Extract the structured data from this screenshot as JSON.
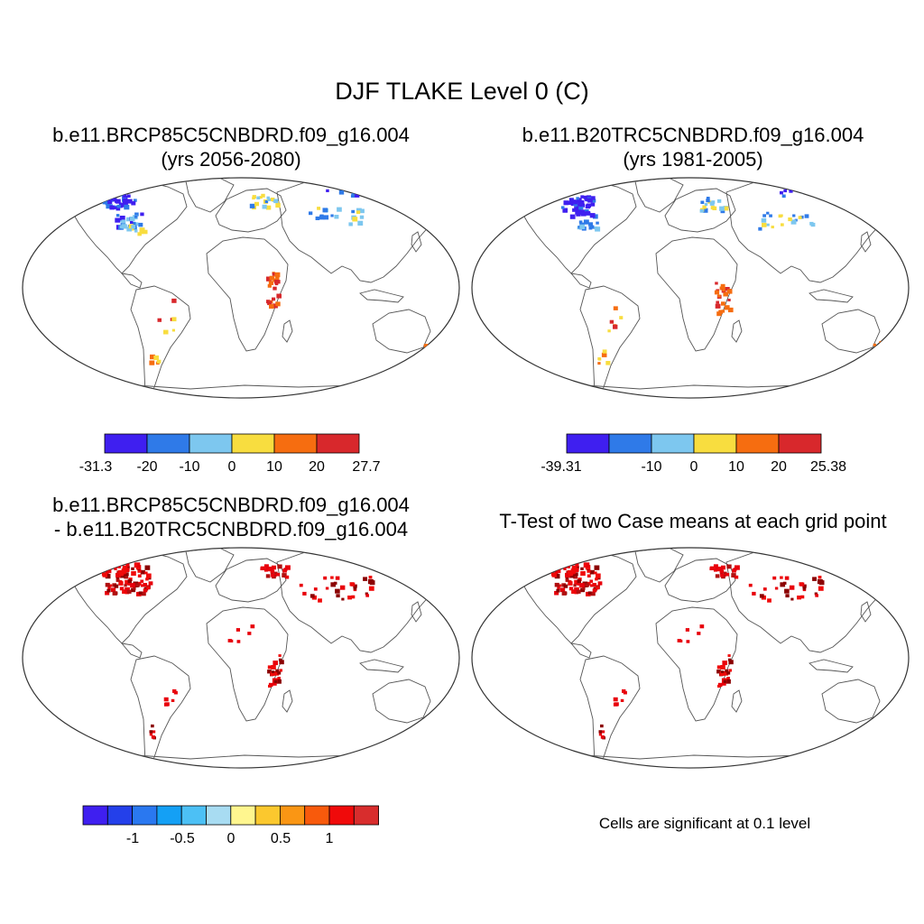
{
  "figure": {
    "title": "DJF TLAKE Level 0 (C)",
    "note": "Cells are significant at 0.1 level"
  },
  "colors": {
    "land_outline": "#555555",
    "frame": "#333333",
    "sig_dark": "#8b0000",
    "sig": "#e8000b"
  },
  "chart_data": [
    {
      "type": "heatmap",
      "id": "case1",
      "title_line1": "b.e11.BRCP85C5CNBDRD.f09_g16.004",
      "title_line2": "(yrs 2056-2080)",
      "projection": "Robinson world map",
      "colorbar": {
        "colors": [
          "#3f1ff0",
          "#2f7ae8",
          "#7dc7ef",
          "#f8dd3f",
          "#f66d10",
          "#d8282c"
        ],
        "tick_labels": [
          "-31.3",
          "-20",
          "-10",
          "0",
          "10",
          "20",
          "27.7"
        ],
        "min": -31.3,
        "max": 27.7
      }
    },
    {
      "type": "heatmap",
      "id": "case2",
      "title_line1": "b.e11.B20TRC5CNBDRD.f09_g16.004",
      "title_line2": "(yrs 1981-2005)",
      "projection": "Robinson world map",
      "colorbar": {
        "colors": [
          "#3f1ff0",
          "#2f7ae8",
          "#7dc7ef",
          "#f8dd3f",
          "#f66d10",
          "#d8282c"
        ],
        "tick_labels": [
          "-39.31",
          "-10",
          "0",
          "10",
          "20",
          "25.38"
        ],
        "min": -39.31,
        "max": 25.38
      }
    },
    {
      "type": "heatmap",
      "id": "diff",
      "title_line1": "b.e11.BRCP85C5CNBDRD.f09_g16.004",
      "title_line2": "- b.e11.B20TRC5CNBDRD.f09_g16.004",
      "projection": "Robinson world map",
      "colorbar": {
        "colors": [
          "#3f1ff0",
          "#2440ea",
          "#2a78f0",
          "#14a0f5",
          "#4cc0f5",
          "#a8dcf2",
          "#fff68f",
          "#fbc82e",
          "#fa9614",
          "#f85a0c",
          "#f00a0a",
          "#d82d2d"
        ],
        "tick_labels": [
          "-1",
          "-0.5",
          "0",
          "0.5",
          "1"
        ],
        "tick_values": [
          -1,
          -0.5,
          0,
          0.5,
          1
        ]
      }
    },
    {
      "type": "heatmap",
      "id": "ttest",
      "title_line1": "T-Test of two Case means at each grid point",
      "projection": "Robinson world map"
    }
  ]
}
